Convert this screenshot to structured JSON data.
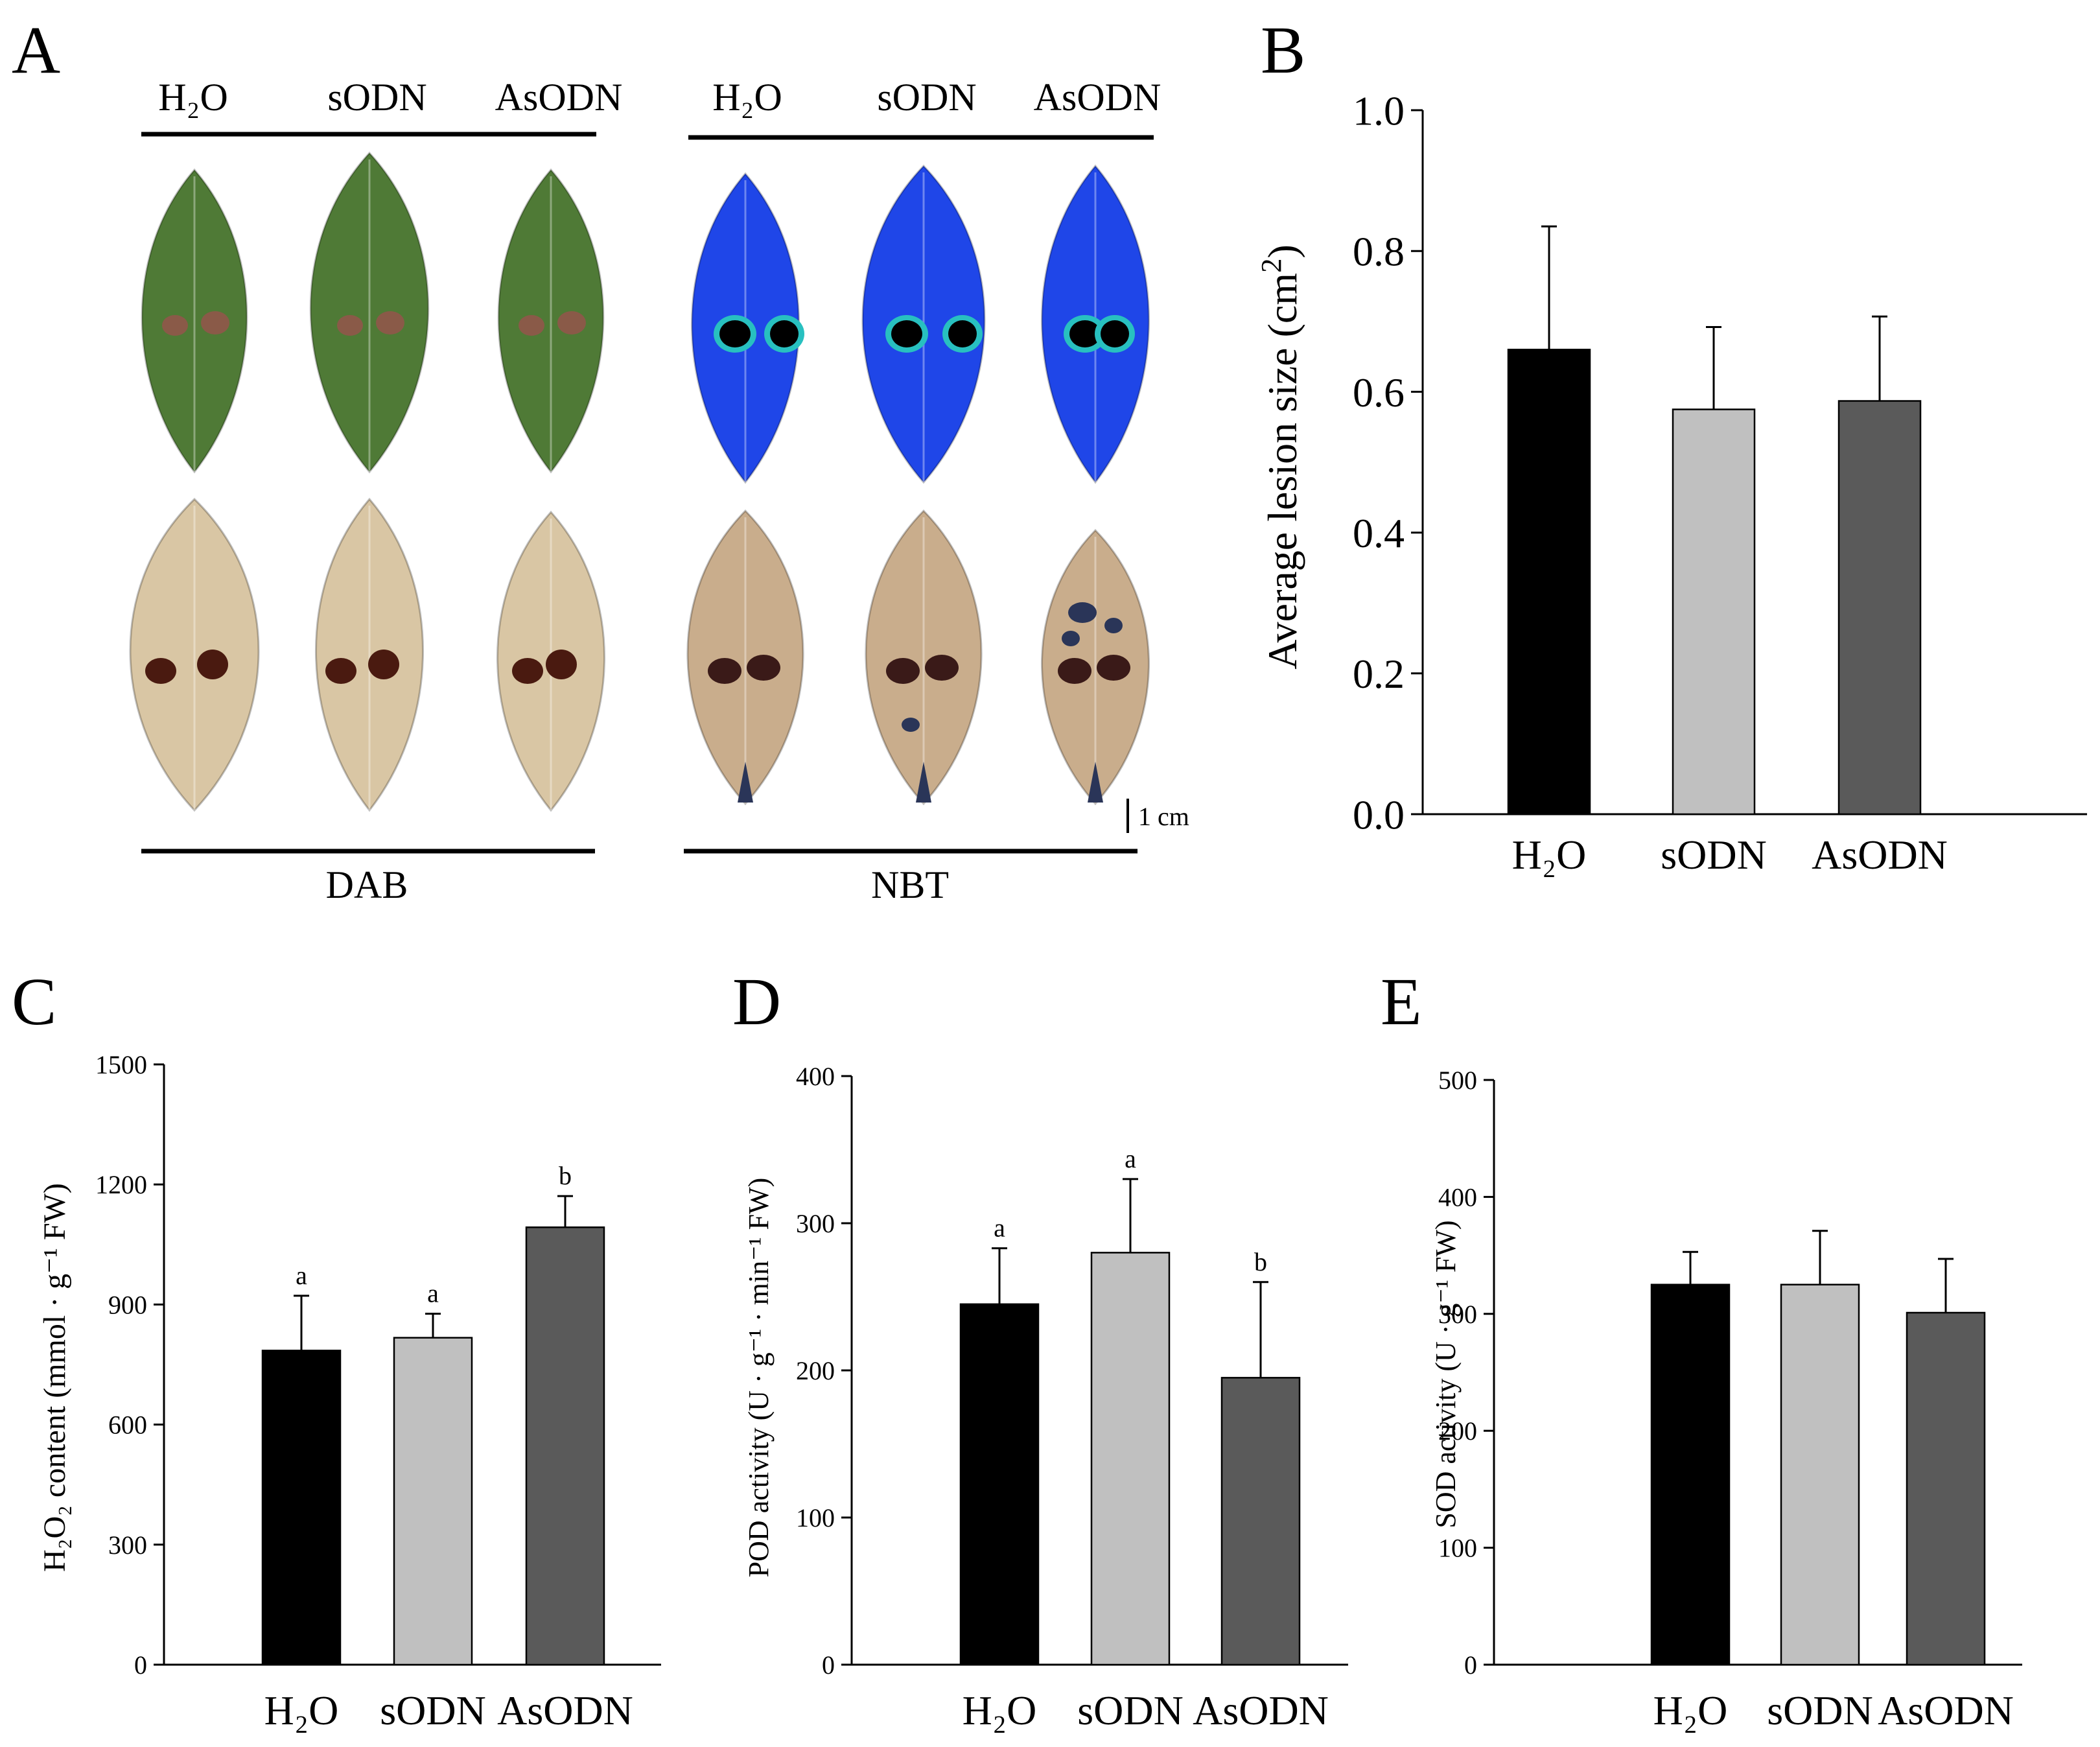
{
  "panel_a": {
    "letter": "A",
    "dab_group": {
      "treatments": [
        "H₂O",
        "sODN",
        "AsODN"
      ],
      "stain_label": "DAB",
      "fresh_leaf_color": "#4f7a36",
      "stained_leaf_color": "#d9c6a4",
      "lesion_color_fresh": "#8a5a48",
      "lesion_color_stained": "#4a1a10"
    },
    "nbt_group": {
      "treatments": [
        "H₂O",
        "sODN",
        "AsODN"
      ],
      "stain_label": "NBT",
      "fresh_leaf_color": "#1f46e8",
      "stained_leaf_color": "#c9ad8c",
      "lesion_color_fresh": "#000000",
      "lesion_color_stained": "#3a1a18",
      "blue_spot_color": "#2a3558"
    },
    "scale_bar_label": "1 cm"
  },
  "chart_data": [
    {
      "panel": "B",
      "type": "bar",
      "categories": [
        "H₂O",
        "sODN",
        "AsODN"
      ],
      "values": [
        0.66,
        0.575,
        0.587
      ],
      "errors": [
        0.175,
        0.117,
        0.12
      ],
      "significance": [
        "",
        "",
        ""
      ],
      "ylabel_pre": "Average lesion size (cm",
      "ylabel_sup": "2",
      "ylabel_post": ")",
      "ylim": [
        0,
        1.0
      ],
      "yticks": [
        "0.0",
        "0.2",
        "0.4",
        "0.6",
        "0.8",
        "1.0"
      ],
      "bar_colors": [
        "#000000",
        "#c0c0c0",
        "#5a5a5a"
      ]
    },
    {
      "panel": "C",
      "type": "bar",
      "categories": [
        "H₂O",
        "sODN",
        "AsODN"
      ],
      "values": [
        785,
        817,
        1093
      ],
      "errors": [
        137,
        60,
        78
      ],
      "significance": [
        "a",
        "a",
        "b"
      ],
      "ylabel": "H₂O₂ content (mmol · g⁻¹ FW)",
      "ylim": [
        0,
        1500
      ],
      "yticks": [
        "0",
        "300",
        "600",
        "900",
        "1200",
        "1500"
      ],
      "bar_colors": [
        "#000000",
        "#c0c0c0",
        "#5a5a5a"
      ]
    },
    {
      "panel": "D",
      "type": "bar",
      "categories": [
        "H₂O",
        "sODN",
        "AsODN"
      ],
      "values": [
        245,
        280,
        195
      ],
      "errors": [
        38,
        50,
        65
      ],
      "significance": [
        "a",
        "a",
        "b"
      ],
      "ylabel": "POD activity (U · g⁻¹ · min⁻¹ FW)",
      "ylim": [
        0,
        400
      ],
      "yticks": [
        "0",
        "100",
        "200",
        "300",
        "400"
      ],
      "bar_colors": [
        "#000000",
        "#c0c0c0",
        "#5a5a5a"
      ]
    },
    {
      "panel": "E",
      "type": "bar",
      "categories": [
        "H₂O",
        "sODN",
        "AsODN"
      ],
      "values": [
        325,
        325,
        301
      ],
      "errors": [
        28,
        46,
        46
      ],
      "significance": [
        "",
        "",
        ""
      ],
      "ylabel": "SOD activity (U · g⁻¹ FW)",
      "ylim": [
        0,
        500
      ],
      "yticks": [
        "0",
        "100",
        "200",
        "300",
        "400",
        "500"
      ],
      "bar_colors": [
        "#000000",
        "#c0c0c0",
        "#5a5a5a"
      ]
    }
  ]
}
